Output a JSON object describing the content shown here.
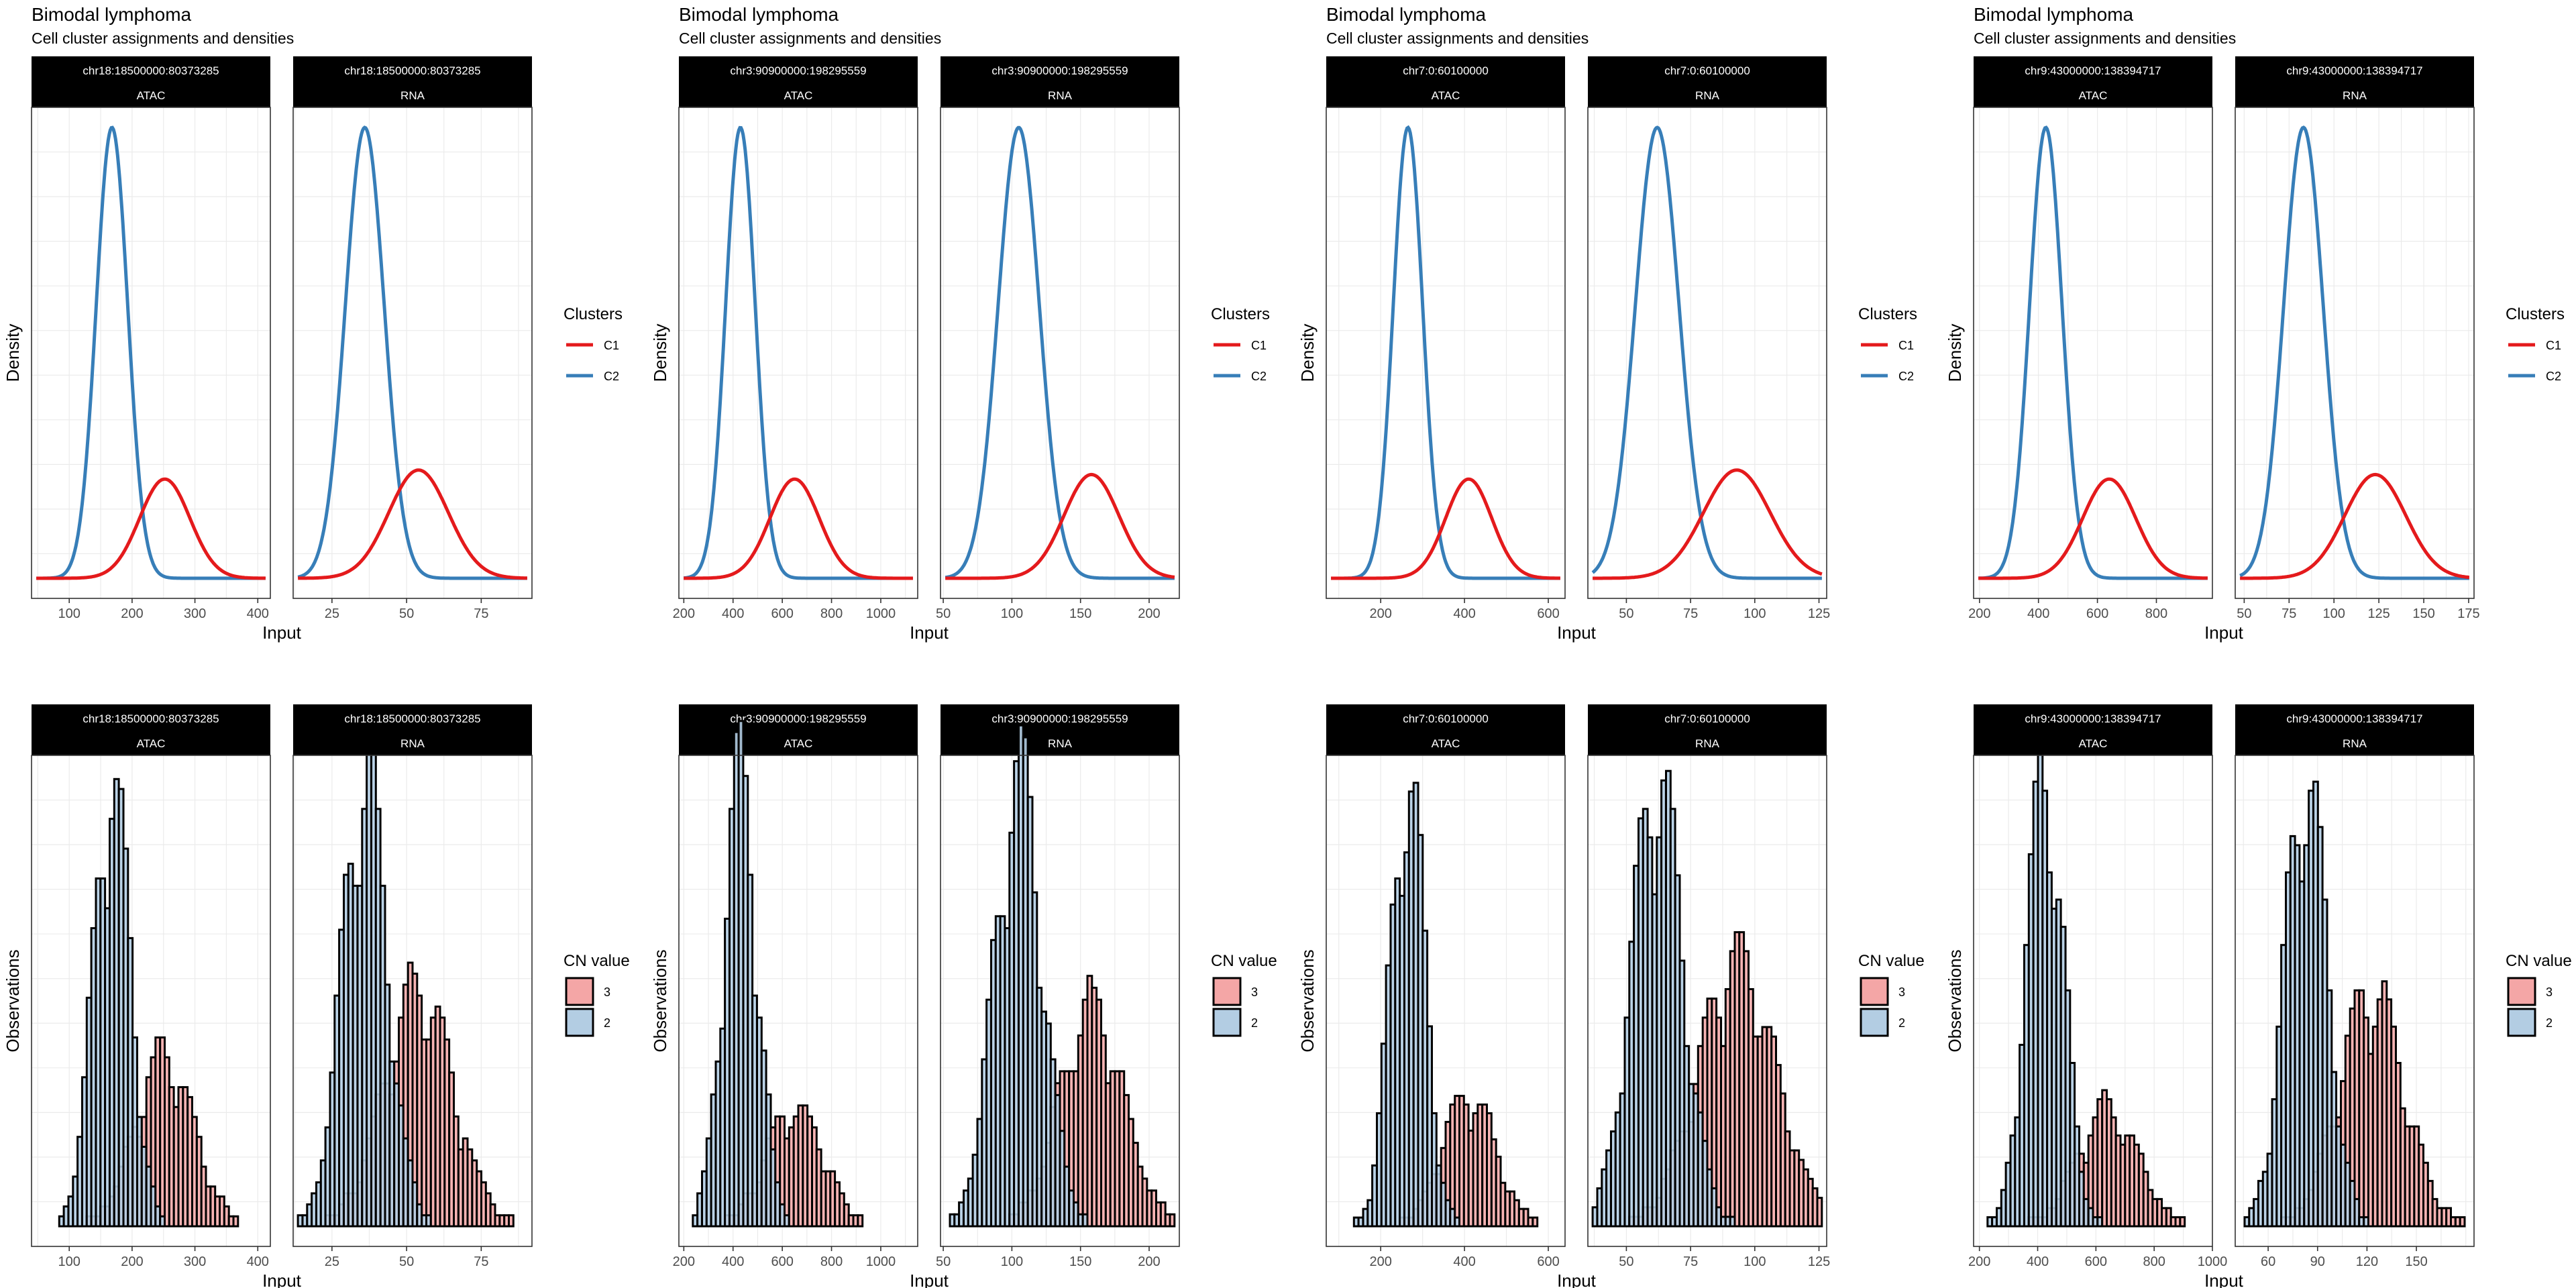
{
  "chart_data": [
    {
      "type": "line",
      "kind": "density",
      "title": "Bimodal lymphoma",
      "subtitle": "Cell cluster assignments and densities",
      "xlabel": "Input",
      "ylabel": "Density",
      "legend": {
        "title": "Clusters",
        "placement": "right",
        "entries": [
          {
            "name": "C1",
            "color": "#E41A1C"
          },
          {
            "name": "C2",
            "color": "#377EB8"
          }
        ]
      },
      "facets": [
        {
          "strip": [
            "chr18:18500000:80373285",
            "ATAC"
          ],
          "xlim": [
            40,
            420
          ],
          "xticks": [
            100,
            200,
            300,
            400
          ],
          "series": [
            {
              "name": "C1",
              "color": "#E41A1C",
              "mean": 252,
              "sd": 40,
              "peak": 0.22
            },
            {
              "name": "C2",
              "color": "#377EB8",
              "mean": 168,
              "sd": 25,
              "peak": 1.0
            }
          ]
        },
        {
          "strip": [
            "chr18:18500000:80373285",
            "RNA"
          ],
          "xlim": [
            12,
            92
          ],
          "xticks": [
            25,
            50,
            75
          ],
          "series": [
            {
              "name": "C1",
              "color": "#E41A1C",
              "mean": 54,
              "sd": 10,
              "peak": 0.24
            },
            {
              "name": "C2",
              "color": "#377EB8",
              "mean": 36,
              "sd": 6.5,
              "peak": 1.0
            }
          ]
        }
      ]
    },
    {
      "type": "bar",
      "kind": "histogram",
      "xlabel": "Input",
      "ylabel": "Observations",
      "legend": {
        "title": "CN value",
        "placement": "right",
        "entries": [
          {
            "name": "3",
            "color": "#F4A6A6"
          },
          {
            "name": "2",
            "color": "#B3CDE3"
          }
        ]
      },
      "facets": [
        {
          "strip": [
            "chr18:18500000:80373285",
            "ATAC"
          ],
          "xlim": [
            40,
            420
          ],
          "xticks": [
            100,
            200,
            300,
            400
          ],
          "series": [
            {
              "name": "3",
              "color": "#F4A6A6",
              "mean": 252,
              "sd": 40,
              "peak": 16
            },
            {
              "name": "2",
              "color": "#B3CDE3",
              "mean": 168,
              "sd": 25,
              "peak": 42
            }
          ]
        },
        {
          "strip": [
            "chr18:18500000:80373285",
            "RNA"
          ],
          "xlim": [
            12,
            92
          ],
          "xticks": [
            25,
            50,
            75
          ],
          "series": [
            {
              "name": "3",
              "color": "#F4A6A6",
              "mean": 54,
              "sd": 10,
              "peak": 20
            },
            {
              "name": "2",
              "color": "#B3CDE3",
              "mean": 36,
              "sd": 6.5,
              "peak": 38
            }
          ]
        }
      ]
    },
    {
      "type": "line",
      "kind": "density",
      "title": "Bimodal lymphoma",
      "subtitle": "Cell cluster assignments and densities",
      "xlabel": "Input",
      "ylabel": "Density",
      "legend": {
        "title": "Clusters",
        "placement": "right",
        "entries": [
          {
            "name": "C1",
            "color": "#E41A1C"
          },
          {
            "name": "C2",
            "color": "#377EB8"
          }
        ]
      },
      "facets": [
        {
          "strip": [
            "chr3:90900000:198295559",
            "ATAC"
          ],
          "xlim": [
            180,
            1150
          ],
          "xticks": [
            200,
            400,
            600,
            800,
            1000
          ],
          "series": [
            {
              "name": "C1",
              "color": "#E41A1C",
              "mean": 650,
              "sd": 100,
              "peak": 0.22
            },
            {
              "name": "C2",
              "color": "#377EB8",
              "mean": 430,
              "sd": 60,
              "peak": 1.0
            }
          ]
        },
        {
          "strip": [
            "chr3:90900000:198295559",
            "RNA"
          ],
          "xlim": [
            48,
            222
          ],
          "xticks": [
            50,
            100,
            150,
            200
          ],
          "series": [
            {
              "name": "C1",
              "color": "#E41A1C",
              "mean": 158,
              "sd": 20,
              "peak": 0.23
            },
            {
              "name": "C2",
              "color": "#377EB8",
              "mean": 105,
              "sd": 15,
              "peak": 1.0
            }
          ]
        }
      ]
    },
    {
      "type": "bar",
      "kind": "histogram",
      "xlabel": "Input",
      "ylabel": "Observations",
      "legend": {
        "title": "CN value",
        "placement": "right",
        "entries": [
          {
            "name": "3",
            "color": "#F4A6A6"
          },
          {
            "name": "2",
            "color": "#B3CDE3"
          }
        ]
      },
      "facets": [
        {
          "strip": [
            "chr3:90900000:198295559",
            "ATAC"
          ],
          "xlim": [
            180,
            1150
          ],
          "xticks": [
            200,
            400,
            600,
            800,
            1000
          ],
          "series": [
            {
              "name": "3",
              "color": "#F4A6A6",
              "mean": 650,
              "sd": 100,
              "peak": 10
            },
            {
              "name": "2",
              "color": "#B3CDE3",
              "mean": 430,
              "sd": 60,
              "peak": 38
            }
          ]
        },
        {
          "strip": [
            "chr3:90900000:198295559",
            "RNA"
          ],
          "xlim": [
            48,
            222
          ],
          "xticks": [
            50,
            100,
            150,
            200
          ],
          "series": [
            {
              "name": "3",
              "color": "#F4A6A6",
              "mean": 158,
              "sd": 20,
              "peak": 17
            },
            {
              "name": "2",
              "color": "#B3CDE3",
              "mean": 105,
              "sd": 15,
              "peak": 35
            }
          ]
        }
      ]
    },
    {
      "type": "line",
      "kind": "density",
      "title": "Bimodal lymphoma",
      "subtitle": "Cell cluster assignments and densities",
      "xlabel": "Input",
      "ylabel": "Density",
      "legend": {
        "title": "Clusters",
        "placement": "right",
        "entries": [
          {
            "name": "C1",
            "color": "#E41A1C"
          },
          {
            "name": "C2",
            "color": "#377EB8"
          }
        ]
      },
      "facets": [
        {
          "strip": [
            "chr7:0:60100000",
            "ATAC"
          ],
          "xlim": [
            70,
            640
          ],
          "xticks": [
            200,
            400,
            600
          ],
          "series": [
            {
              "name": "C1",
              "color": "#E41A1C",
              "mean": 410,
              "sd": 55,
              "peak": 0.22
            },
            {
              "name": "C2",
              "color": "#377EB8",
              "mean": 265,
              "sd": 35,
              "peak": 1.0
            }
          ]
        },
        {
          "strip": [
            "chr7:0:60100000",
            "RNA"
          ],
          "xlim": [
            35,
            128
          ],
          "xticks": [
            50,
            75,
            100,
            125
          ],
          "series": [
            {
              "name": "C1",
              "color": "#E41A1C",
              "mean": 93,
              "sd": 13,
              "peak": 0.24
            },
            {
              "name": "C2",
              "color": "#377EB8",
              "mean": 62,
              "sd": 8.5,
              "peak": 1.0
            }
          ]
        }
      ]
    },
    {
      "type": "bar",
      "kind": "histogram",
      "xlabel": "Input",
      "ylabel": "Observations",
      "legend": {
        "title": "CN value",
        "placement": "right",
        "entries": [
          {
            "name": "3",
            "color": "#F4A6A6"
          },
          {
            "name": "2",
            "color": "#B3CDE3"
          }
        ]
      },
      "facets": [
        {
          "strip": [
            "chr7:0:60100000",
            "ATAC"
          ],
          "xlim": [
            70,
            640
          ],
          "xticks": [
            200,
            400,
            600
          ],
          "series": [
            {
              "name": "3",
              "color": "#F4A6A6",
              "mean": 410,
              "sd": 55,
              "peak": 14
            },
            {
              "name": "2",
              "color": "#B3CDE3",
              "mean": 265,
              "sd": 35,
              "peak": 48
            }
          ]
        },
        {
          "strip": [
            "chr7:0:60100000",
            "RNA"
          ],
          "xlim": [
            35,
            128
          ],
          "xticks": [
            50,
            75,
            100,
            125
          ],
          "series": [
            {
              "name": "3",
              "color": "#F4A6A6",
              "mean": 93,
              "sd": 13,
              "peak": 26
            },
            {
              "name": "2",
              "color": "#B3CDE3",
              "mean": 62,
              "sd": 8.5,
              "peak": 44
            }
          ]
        }
      ]
    },
    {
      "type": "line",
      "kind": "density",
      "title": "Bimodal lymphoma",
      "subtitle": "Cell cluster assignments and densities",
      "xlabel": "Input",
      "ylabel": "Density",
      "legend": {
        "title": "Clusters",
        "placement": "right",
        "entries": [
          {
            "name": "C1",
            "color": "#E41A1C"
          },
          {
            "name": "C2",
            "color": "#377EB8"
          }
        ]
      },
      "facets": [
        {
          "strip": [
            "chr9:43000000:138394717",
            "ATAC"
          ],
          "xlim": [
            180,
            990
          ],
          "xticks": [
            200,
            400,
            600,
            800
          ],
          "series": [
            {
              "name": "C1",
              "color": "#E41A1C",
              "mean": 640,
              "sd": 90,
              "peak": 0.22
            },
            {
              "name": "C2",
              "color": "#377EB8",
              "mean": 425,
              "sd": 55,
              "peak": 1.0
            }
          ]
        },
        {
          "strip": [
            "chr9:43000000:138394717",
            "RNA"
          ],
          "xlim": [
            45,
            178
          ],
          "xticks": [
            50,
            75,
            100,
            125,
            150,
            175
          ],
          "series": [
            {
              "name": "C1",
              "color": "#E41A1C",
              "mean": 123,
              "sd": 17,
              "peak": 0.23
            },
            {
              "name": "C2",
              "color": "#377EB8",
              "mean": 83,
              "sd": 11,
              "peak": 1.0
            }
          ]
        }
      ]
    },
    {
      "type": "bar",
      "kind": "histogram",
      "xlabel": "Input",
      "ylabel": "Observations",
      "legend": {
        "title": "CN value",
        "placement": "right",
        "entries": [
          {
            "name": "3",
            "color": "#F4A6A6"
          },
          {
            "name": "2",
            "color": "#B3CDE3"
          }
        ]
      },
      "facets": [
        {
          "strip": [
            "chr9:43000000:138394717",
            "ATAC"
          ],
          "xlim": [
            180,
            1000
          ],
          "xticks": [
            200,
            400,
            600,
            800,
            1000
          ],
          "series": [
            {
              "name": "3",
              "color": "#F4A6A6",
              "mean": 640,
              "sd": 90,
              "peak": 12
            },
            {
              "name": "2",
              "color": "#B3CDE3",
              "mean": 425,
              "sd": 55,
              "peak": 46
            }
          ]
        },
        {
          "strip": [
            "chr9:43000000:138394717",
            "RNA"
          ],
          "xlim": [
            40,
            185
          ],
          "xticks": [
            60,
            90,
            120,
            150
          ],
          "series": [
            {
              "name": "3",
              "color": "#F4A6A6",
              "mean": 123,
              "sd": 17,
              "peak": 24
            },
            {
              "name": "2",
              "color": "#B3CDE3",
              "mean": 83,
              "sd": 11,
              "peak": 46
            }
          ]
        }
      ]
    }
  ]
}
